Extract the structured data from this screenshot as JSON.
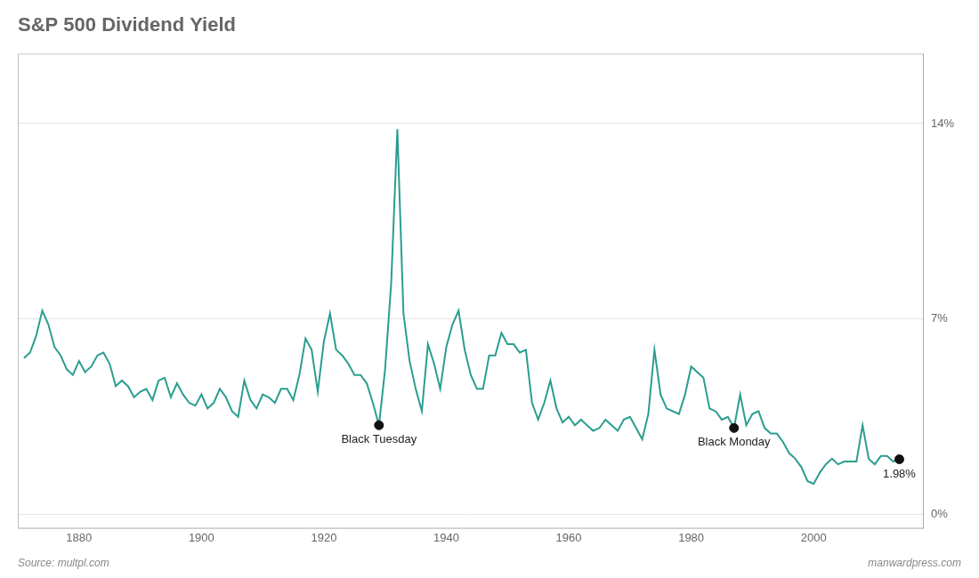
{
  "chart_data": {
    "type": "line",
    "title": "S&P 500 Dividend Yield",
    "x": [
      1871,
      1872,
      1873,
      1874,
      1875,
      1876,
      1877,
      1878,
      1879,
      1880,
      1881,
      1882,
      1883,
      1884,
      1885,
      1886,
      1887,
      1888,
      1889,
      1890,
      1891,
      1892,
      1893,
      1894,
      1895,
      1896,
      1897,
      1898,
      1899,
      1900,
      1901,
      1902,
      1903,
      1904,
      1905,
      1906,
      1907,
      1908,
      1909,
      1910,
      1911,
      1912,
      1913,
      1914,
      1915,
      1916,
      1917,
      1918,
      1919,
      1920,
      1921,
      1922,
      1923,
      1924,
      1925,
      1926,
      1927,
      1928,
      1929,
      1930,
      1931,
      1932,
      1933,
      1934,
      1935,
      1936,
      1937,
      1938,
      1939,
      1940,
      1941,
      1942,
      1943,
      1944,
      1945,
      1946,
      1947,
      1948,
      1949,
      1950,
      1951,
      1952,
      1953,
      1954,
      1955,
      1956,
      1957,
      1958,
      1959,
      1960,
      1961,
      1962,
      1963,
      1964,
      1965,
      1966,
      1967,
      1968,
      1969,
      1970,
      1971,
      1972,
      1973,
      1974,
      1975,
      1976,
      1977,
      1978,
      1979,
      1980,
      1981,
      1982,
      1983,
      1984,
      1985,
      1986,
      1987,
      1988,
      1989,
      1990,
      1991,
      1992,
      1993,
      1994,
      1995,
      1996,
      1997,
      1998,
      1999,
      2000,
      2001,
      2002,
      2003,
      2004,
      2005,
      2006,
      2007,
      2008,
      2009,
      2010,
      2011,
      2012,
      2013,
      2014
    ],
    "values": [
      5.6,
      5.8,
      6.4,
      7.3,
      6.8,
      6.0,
      5.7,
      5.2,
      5.0,
      5.5,
      5.1,
      5.3,
      5.7,
      5.8,
      5.4,
      4.6,
      4.8,
      4.6,
      4.2,
      4.4,
      4.5,
      4.1,
      4.8,
      4.9,
      4.2,
      4.7,
      4.3,
      4.0,
      3.9,
      4.3,
      3.8,
      4.0,
      4.5,
      4.2,
      3.7,
      3.5,
      4.8,
      4.1,
      3.8,
      4.3,
      4.2,
      4.0,
      4.5,
      4.5,
      4.1,
      5.0,
      6.3,
      5.9,
      4.4,
      6.2,
      7.2,
      5.9,
      5.7,
      5.4,
      5.0,
      5.0,
      4.7,
      4.0,
      3.2,
      5.2,
      8.3,
      13.8,
      7.2,
      5.5,
      4.5,
      3.7,
      6.1,
      5.4,
      4.5,
      6.0,
      6.8,
      7.3,
      5.9,
      5.0,
      4.5,
      4.5,
      5.7,
      5.7,
      6.5,
      6.1,
      6.1,
      5.8,
      5.9,
      4.0,
      3.4,
      4.0,
      4.8,
      3.8,
      3.3,
      3.5,
      3.2,
      3.4,
      3.2,
      3.0,
      3.1,
      3.4,
      3.2,
      3.0,
      3.4,
      3.5,
      3.1,
      2.7,
      3.6,
      5.9,
      4.3,
      3.8,
      3.7,
      3.6,
      4.3,
      5.3,
      5.1,
      4.9,
      3.8,
      3.7,
      3.4,
      3.5,
      3.1,
      4.3,
      3.2,
      3.6,
      3.7,
      3.1,
      2.9,
      2.9,
      2.6,
      2.2,
      2.0,
      1.7,
      1.2,
      1.1,
      1.5,
      1.8,
      2.0,
      1.8,
      1.9,
      1.9,
      1.9,
      3.2,
      2.0,
      1.8,
      2.1,
      2.1,
      1.9,
      1.98
    ],
    "color": "#2a9d8f",
    "xlim": [
      1870,
      2018
    ],
    "xticks": [
      1880,
      1900,
      1920,
      1940,
      1960,
      1980,
      2000
    ],
    "ylim": [
      -0.5,
      16.5
    ],
    "yticks": [
      {
        "value": 0,
        "label": "0%"
      },
      {
        "value": 7,
        "label": "7%"
      },
      {
        "value": 14,
        "label": "14%"
      }
    ],
    "grid": true,
    "annotations": [
      {
        "text": "Black Tuesday",
        "x": 1929,
        "y": 3.2
      },
      {
        "text": "Black Monday",
        "x": 1987,
        "y": 3.1
      },
      {
        "text": "1.98%",
        "x": 2014,
        "y": 1.98
      }
    ],
    "source": "Source: multpl.com",
    "credit": "manwardpress.com"
  }
}
